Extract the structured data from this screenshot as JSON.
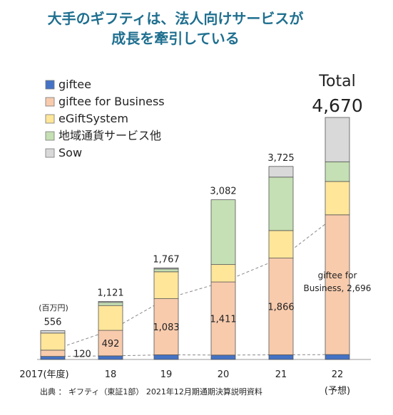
{
  "chart_data": {
    "type": "bar",
    "stacked": true,
    "title_line1": "大手のギフティは、法人向けサービスが",
    "title_line2": "成長を牽引している",
    "unit": "(百万円)",
    "categories": [
      "2017(年度)",
      "18",
      "19",
      "20",
      "21",
      "22"
    ],
    "category_sub": [
      "",
      "",
      "",
      "",
      "",
      "(予想)"
    ],
    "series": [
      {
        "name": "giftee",
        "color": "#4472c4",
        "values": [
          60,
          70,
          90,
          85,
          90,
          95
        ]
      },
      {
        "name": "giftee for Business",
        "color": "#f8cbad",
        "values": [
          120,
          492,
          1083,
          1411,
          1866,
          2696
        ]
      },
      {
        "name": "eGiftSystem",
        "color": "#ffe699",
        "values": [
          330,
          479,
          519,
          336,
          532,
          644
        ]
      },
      {
        "name": "地域通貨サービス他",
        "color": "#c5e0b4",
        "values": [
          0,
          60,
          55,
          1250,
          1031,
          380
        ]
      },
      {
        "name": "Sow",
        "color": "#d9d9d9",
        "values": [
          46,
          20,
          20,
          0,
          206,
          855
        ]
      }
    ],
    "totals": [
      556,
      1121,
      1767,
      3082,
      3725,
      4670
    ],
    "total_labels": [
      "556",
      "1,121",
      "1,767",
      "3,082",
      "3,725",
      "4,670"
    ],
    "business_labels": [
      "120",
      "492",
      "1,083",
      "1,411",
      "1,866",
      "giftee for Business, 2,696"
    ],
    "business_label_line1": "giftee for",
    "business_label_line2": "Business, 2,696",
    "total_word": "Total",
    "ylim": [
      0,
      4700
    ],
    "legend_position": "top-left",
    "source": "出典 ： ギフティ（東証1部） 2021年12月期通期決算説明資料"
  }
}
